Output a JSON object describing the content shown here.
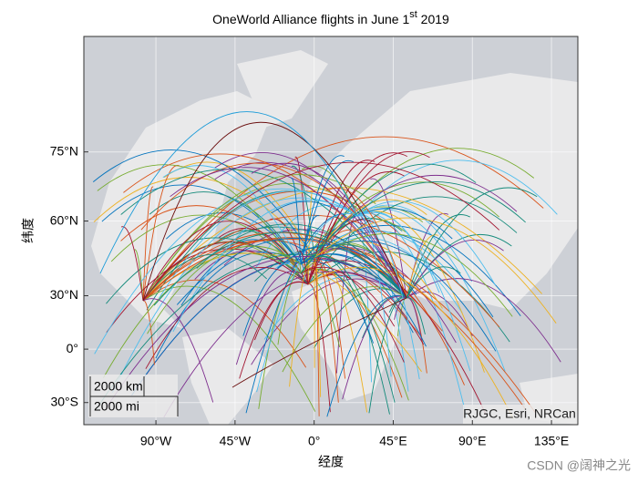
{
  "title": {
    "text": "OneWorld Alliance flights in June 1",
    "superscript": "st",
    "rest": " 2019"
  },
  "xlabel": "经度",
  "ylabel": "纬度",
  "lonlim": [
    -131,
    150
  ],
  "latlim": [
    -40.6,
    85.4
  ],
  "lonticks": [
    {
      "value": -90,
      "label": "90°W"
    },
    {
      "value": -45,
      "label": "45°W"
    },
    {
      "value": 0,
      "label": "0°"
    },
    {
      "value": 45,
      "label": "45°E"
    },
    {
      "value": 90,
      "label": "90°E"
    },
    {
      "value": 135,
      "label": "135°E"
    }
  ],
  "latticks": [
    {
      "value": -30,
      "label": "30°S"
    },
    {
      "value": 0,
      "label": "0°"
    },
    {
      "value": 30,
      "label": "30°N"
    },
    {
      "value": 60,
      "label": "60°N"
    },
    {
      "value": 75,
      "label": "75°N"
    }
  ],
  "scalebar": {
    "km": "2000 km",
    "mi": "2000 mi"
  },
  "attribution": "RJGC, Esri, NRCan",
  "watermark": "CSDN @阔神之光"
}
